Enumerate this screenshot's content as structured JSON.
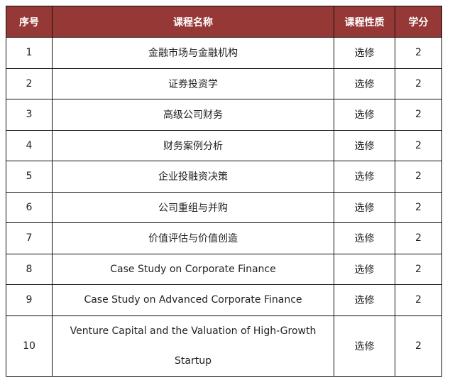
{
  "header_color": "#963836",
  "headers": [
    "序号",
    "课程名称",
    "课程性质",
    "学分"
  ],
  "rows": [
    {
      "no": "1",
      "name": "金融市场与金融机构",
      "type": "选修",
      "credit": "2"
    },
    {
      "no": "2",
      "name": "证券投资学",
      "type": "选修",
      "credit": "2"
    },
    {
      "no": "3",
      "name": "高级公司财务",
      "type": "选修",
      "credit": "2"
    },
    {
      "no": "4",
      "name": "财务案例分析",
      "type": "选修",
      "credit": "2"
    },
    {
      "no": "5",
      "name": "企业投融资决策",
      "type": "选修",
      "credit": "2"
    },
    {
      "no": "6",
      "name": "公司重组与并购",
      "type": "选修",
      "credit": "2"
    },
    {
      "no": "7",
      "name": "价值评估与价值创造",
      "type": "选修",
      "credit": "2"
    },
    {
      "no": "8",
      "name": "Case Study on Corporate Finance",
      "type": "选修",
      "credit": "2"
    },
    {
      "no": "9",
      "name": "Case Study on Advanced Corporate Finance",
      "type": "选修",
      "credit": "2"
    },
    {
      "no": "10",
      "name": "Venture Capital and the Valuation of High-Growth Startup",
      "type": "选修",
      "credit": "2"
    }
  ]
}
